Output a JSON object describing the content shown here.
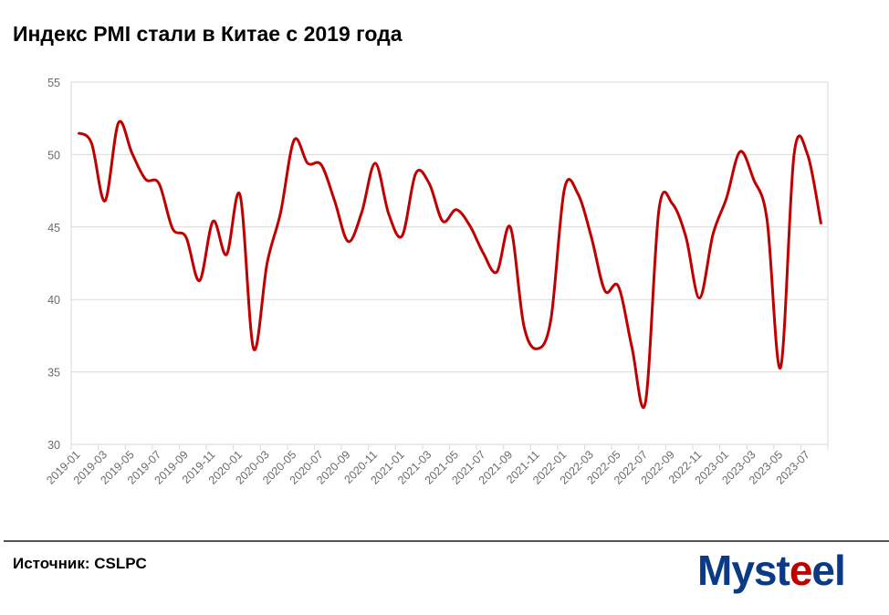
{
  "title": "Индекс PMI стали в Китае с 2019 года",
  "source": "Источник: CSLPC",
  "logo": {
    "text": "Mysteel",
    "part1": "Myst",
    "part2": "e",
    "part3": "el"
  },
  "colors": {
    "line": "#c00000",
    "grid": "#d9d9d9",
    "logo_blue": "#0a3a86",
    "logo_red": "#c00000"
  },
  "chart_data": {
    "type": "line",
    "title": "Индекс PMI стали в Китае с 2019 года",
    "xlabel": "",
    "ylabel": "",
    "ylim": [
      30,
      55
    ],
    "yticks": [
      30,
      35,
      40,
      45,
      50,
      55
    ],
    "grid": true,
    "legend": "none",
    "x": [
      "2019-01",
      "2019-02",
      "2019-03",
      "2019-04",
      "2019-05",
      "2019-06",
      "2019-07",
      "2019-08",
      "2019-09",
      "2019-10",
      "2019-11",
      "2019-12",
      "2020-01",
      "2020-02",
      "2020-03",
      "2020-04",
      "2020-05",
      "2020-06",
      "2020-07",
      "2020-08",
      "2020-09",
      "2020-10",
      "2020-11",
      "2020-12",
      "2021-01",
      "2021-02",
      "2021-03",
      "2021-04",
      "2021-05",
      "2021-06",
      "2021-07",
      "2021-08",
      "2021-09",
      "2021-10",
      "2021-11",
      "2021-12",
      "2022-01",
      "2022-02",
      "2022-03",
      "2022-04",
      "2022-05",
      "2022-06",
      "2022-07",
      "2022-08",
      "2022-09",
      "2022-10",
      "2022-11",
      "2022-12",
      "2023-01",
      "2023-02",
      "2023-03",
      "2023-04",
      "2023-05",
      "2023-06",
      "2023-07",
      "2023-08"
    ],
    "series": [
      {
        "name": "PMI стали",
        "values": [
          51.5,
          50.8,
          46.8,
          52.2,
          50.1,
          48.3,
          48.0,
          44.9,
          44.3,
          41.3,
          45.4,
          43.1,
          47.2,
          36.6,
          42.5,
          46.0,
          51.0,
          49.4,
          49.3,
          46.8,
          44.0,
          46.0,
          49.4,
          45.9,
          44.4,
          48.7,
          48.0,
          45.4,
          46.2,
          45.1,
          43.2,
          41.9,
          45.0,
          38.2,
          36.6,
          38.6,
          47.6,
          47.3,
          44.3,
          40.6,
          40.9,
          36.7,
          32.9,
          46.2,
          46.6,
          44.3,
          40.1,
          44.5,
          47.0,
          50.2,
          48.3,
          45.5,
          35.3,
          50.0,
          50.0,
          45.2
        ]
      }
    ]
  }
}
